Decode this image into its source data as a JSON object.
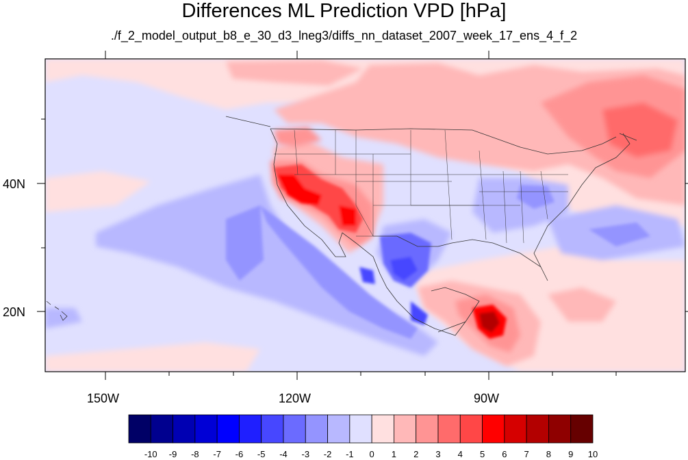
{
  "title": "Differences ML Prediction VPD [hPa]",
  "subtitle": "./f_2_model_output_b8_e_30_d3_lneg3/diffs_nn_dataset_2007_week_17_ens_4_f_2",
  "map": {
    "lon_labels": [
      "150W",
      "120W",
      "90W"
    ],
    "lat_labels": [
      "40N",
      "20N"
    ]
  },
  "colorbar": {
    "labels": [
      "-10",
      "-9",
      "-8",
      "-7",
      "-6",
      "-5",
      "-4",
      "-3",
      "-2",
      "-1",
      "0",
      "1",
      "2",
      "3",
      "4",
      "5",
      "6",
      "7",
      "8",
      "9",
      "10"
    ],
    "colors": [
      "#000066",
      "#00008f",
      "#0000b3",
      "#0000d6",
      "#0000ff",
      "#1f1fff",
      "#4747ff",
      "#6b6bff",
      "#9494ff",
      "#b8b8ff",
      "#e0e0ff",
      "#ffe0e0",
      "#ffb8b8",
      "#ff9494",
      "#ff6b6b",
      "#ff4747",
      "#ff0000",
      "#d60000",
      "#b30000",
      "#8f0000",
      "#660000"
    ]
  }
}
